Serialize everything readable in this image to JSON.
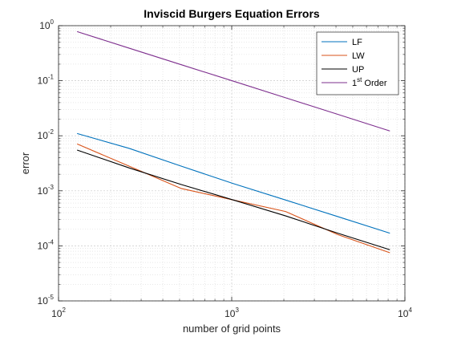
{
  "chart_data": {
    "type": "line",
    "title": "Inviscid Burgers Equation Errors",
    "xlabel": "number of grid points",
    "ylabel": "error",
    "xscale": "log",
    "yscale": "log",
    "xlim": [
      100,
      10000
    ],
    "ylim": [
      1e-05,
      1
    ],
    "x_ticks": [
      {
        "value": 100,
        "base": "10",
        "exp": "2"
      },
      {
        "value": 1000,
        "base": "10",
        "exp": "3"
      },
      {
        "value": 10000,
        "base": "10",
        "exp": "4"
      }
    ],
    "y_ticks": [
      {
        "value": 1,
        "base": "10",
        "exp": "0"
      },
      {
        "value": 0.1,
        "base": "10",
        "exp": "-1"
      },
      {
        "value": 0.01,
        "base": "10",
        "exp": "-2"
      },
      {
        "value": 0.001,
        "base": "10",
        "exp": "-3"
      },
      {
        "value": 0.0001,
        "base": "10",
        "exp": "-4"
      },
      {
        "value": 1e-05,
        "base": "10",
        "exp": "-5"
      }
    ],
    "grid": true,
    "minor_grid": true,
    "legend_position": "top-right",
    "series": [
      {
        "name": "LF",
        "color": "#0072BD",
        "x": [
          128,
          256,
          512,
          1024,
          2048,
          4096,
          8192
        ],
        "y": [
          0.011,
          0.0059,
          0.0028,
          0.00135,
          0.00068,
          0.00034,
          0.00017
        ]
      },
      {
        "name": "LW",
        "color": "#D95319",
        "x": [
          128,
          256,
          512,
          1024,
          2048,
          4096,
          8192
        ],
        "y": [
          0.0071,
          0.0028,
          0.0011,
          0.00068,
          0.00042,
          0.00016,
          7.5e-05
        ]
      },
      {
        "name": "UP",
        "color": "#000000",
        "x": [
          128,
          256,
          512,
          1024,
          2048,
          4096,
          8192
        ],
        "y": [
          0.0055,
          0.0026,
          0.0013,
          0.00068,
          0.00035,
          0.00017,
          8.5e-05
        ]
      },
      {
        "name": "1",
        "name_sup": "st",
        "name_suffix": " Order",
        "color": "#7E2F8E",
        "x": [
          128,
          256,
          512,
          1024,
          2048,
          4096,
          8192
        ],
        "y": [
          0.78,
          0.39,
          0.195,
          0.098,
          0.049,
          0.0245,
          0.0122
        ]
      }
    ]
  }
}
